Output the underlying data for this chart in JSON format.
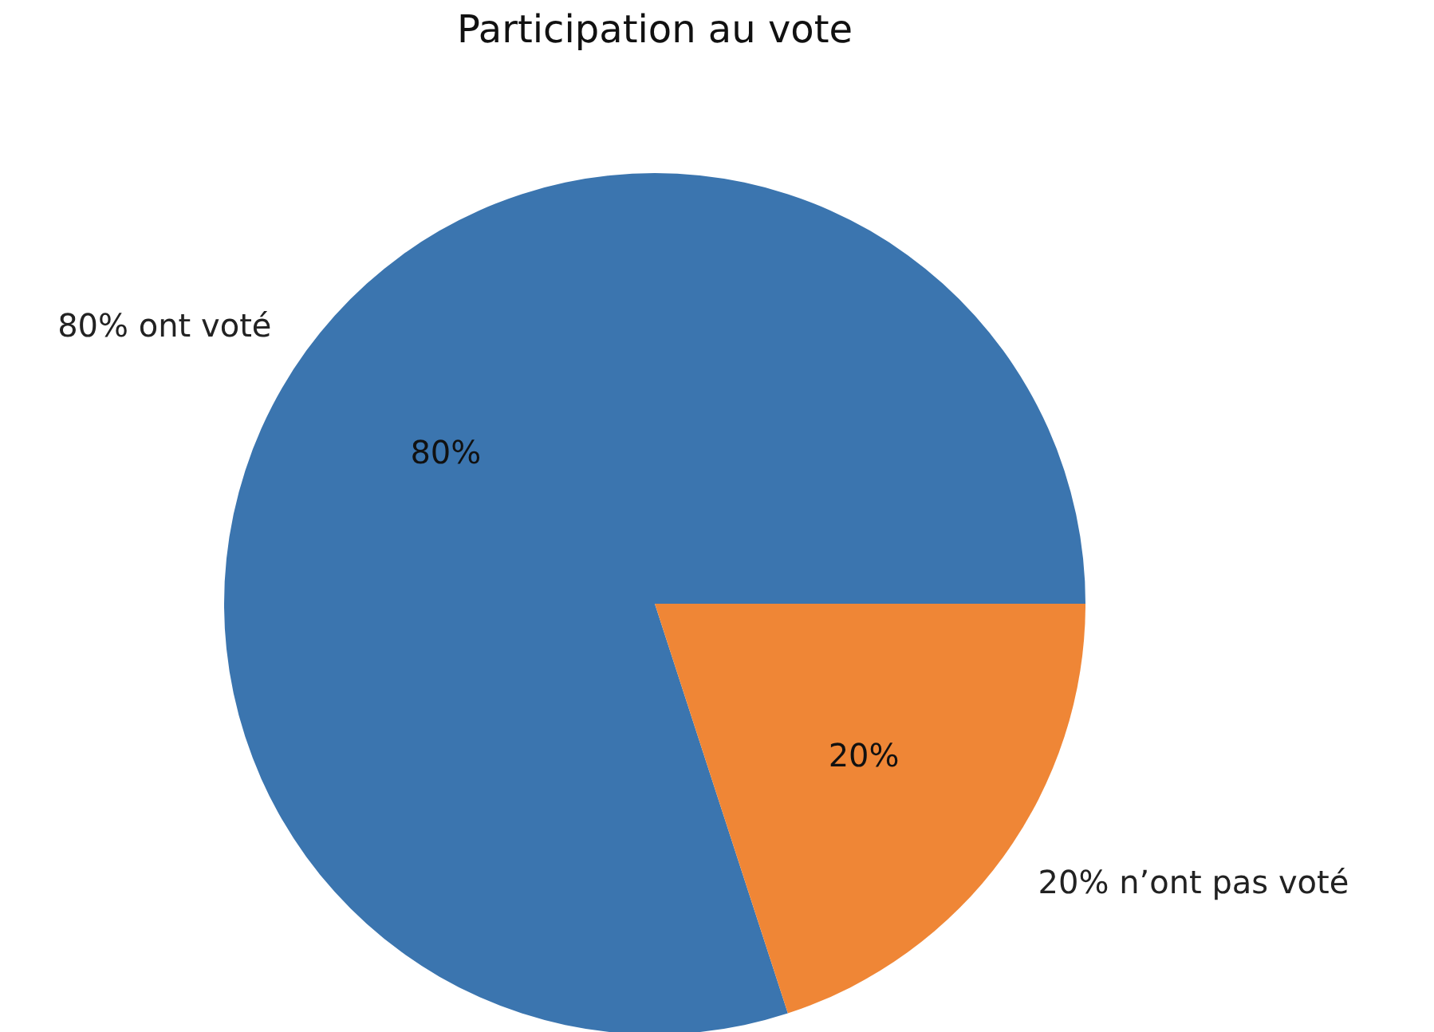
{
  "chart_data": {
    "type": "pie",
    "title": "Participation au vote",
    "categories": [
      "80% ont voté",
      "20% n’ont pas voté"
    ],
    "values": [
      80,
      20
    ],
    "colors": [
      "#3b75af",
      "#ef8636"
    ],
    "value_labels": [
      "80%",
      "20%"
    ]
  }
}
